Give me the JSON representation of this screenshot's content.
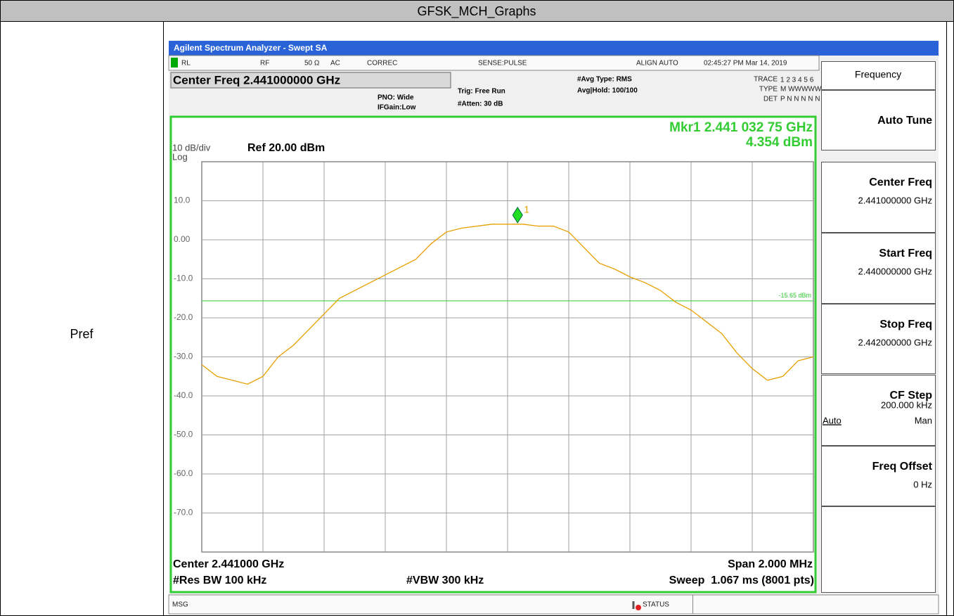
{
  "header": {
    "title": "GFSK_MCH_Graphs"
  },
  "row_label": "Pref",
  "window": {
    "title": "Agilent Spectrum Analyzer - Swept SA"
  },
  "status_bar": [
    "RL",
    "RF",
    "50 Ω",
    "AC",
    "CORREC",
    "SENSE:PULSE",
    "ALIGN AUTO",
    "02:45:27 PM Mar 14, 2019"
  ],
  "settings": {
    "center_freq": "Center Freq 2.441000000 GHz",
    "pno": "PNO: Wide",
    "ifgain": "IFGain:Low",
    "trig": "Trig: Free Run",
    "atten": "#Atten: 30 dB",
    "avg_type": "#Avg Type: RMS",
    "avg_hold": "Avg|Hold: 100/100",
    "trace_label": "TRACE",
    "trace_nums": "1 2 3 4 5 6",
    "type_label": "TYPE",
    "type_vals": "M WWWWW",
    "det_label": "DET",
    "det_vals": "P N N N N N"
  },
  "graph": {
    "scale": "10 dB/div",
    "log": "Log",
    "ref": "Ref 20.00 dBm",
    "marker_label": "Mkr1 2.441 032 75 GHz",
    "marker": {
      "name": "1",
      "x": 2.44103275,
      "value": 4.354,
      "label": "4.354 dBm"
    },
    "display_line": {
      "value": -15.65,
      "label": "-15.65 dBm"
    },
    "xlim": [
      2.44,
      2.442
    ],
    "ylim": [
      -80,
      20
    ],
    "yticks": [
      {
        "value": 10,
        "label": "10.0"
      },
      {
        "value": 0,
        "label": "0.00"
      },
      {
        "value": -10,
        "label": "-10.0"
      },
      {
        "value": -20,
        "label": "-20.0"
      },
      {
        "value": -30,
        "label": "-30.0"
      },
      {
        "value": -40,
        "label": "-40.0"
      },
      {
        "value": -50,
        "label": "-50.0"
      },
      {
        "value": -60,
        "label": "-60.0"
      },
      {
        "value": -70,
        "label": "-70.0"
      }
    ],
    "trace": [
      -32,
      -35,
      -36,
      -37,
      -35,
      -30,
      -27,
      -23,
      -19,
      -15,
      -13,
      -11,
      -9,
      -7,
      -5,
      -1,
      2,
      3,
      3.5,
      4,
      4,
      4,
      3.5,
      3.5,
      2,
      -2,
      -6,
      -7.5,
      -9.5,
      -11,
      -13,
      -16,
      -18,
      -21,
      -24,
      -29,
      -33,
      -36,
      -35,
      -31,
      -30
    ],
    "trace_color": "#e8a000",
    "center": "Center 2.441000 GHz",
    "span": "Span 2.000 MHz",
    "rbw": "#Res BW 100 kHz",
    "vbw": "#VBW 300 kHz",
    "sweep": "Sweep  1.067 ms (8001 pts)"
  },
  "softkeys": {
    "title": "Frequency",
    "keys": [
      {
        "label": "Auto Tune"
      },
      {
        "label": "Center Freq",
        "value": "2.441000000 GHz"
      },
      {
        "label": "Start Freq",
        "value": "2.440000000 GHz"
      },
      {
        "label": "Stop Freq",
        "value": "2.442000000 GHz"
      },
      {
        "label": "CF Step",
        "value": "200.000 kHz",
        "options": [
          "Auto",
          "Man"
        ]
      },
      {
        "label": "Freq Offset",
        "value": "0 Hz"
      }
    ]
  },
  "message_bar": {
    "msg": "MSG",
    "status": "STATUS"
  }
}
